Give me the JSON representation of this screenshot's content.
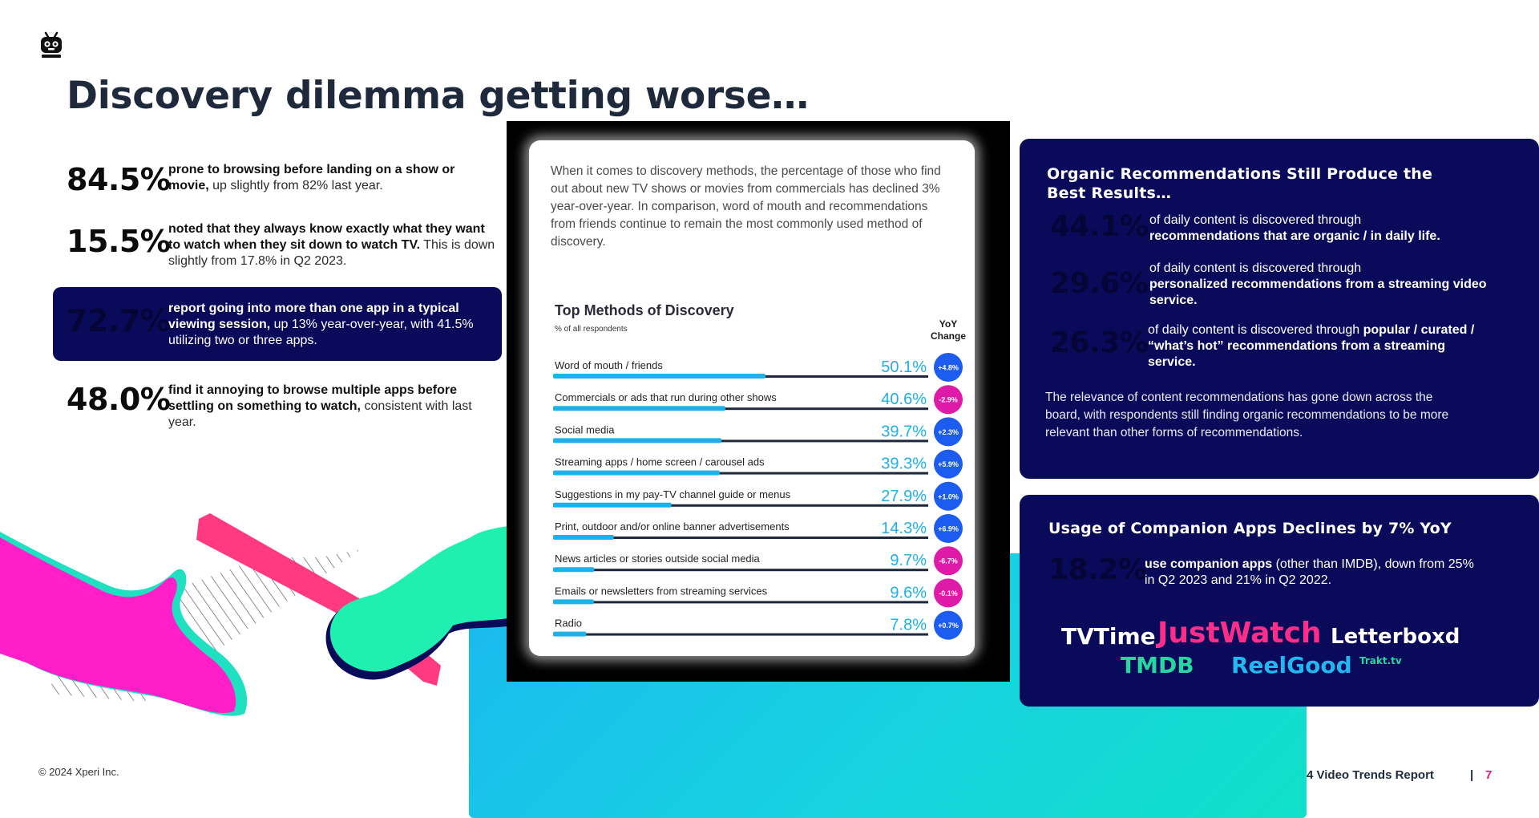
{
  "page": {
    "title": "Discovery dilemma getting worse…",
    "copyright": "© 2024 Xperi Inc.",
    "report_label": "4 Video Trends Report",
    "page_separator": "|",
    "page_number": "7",
    "logo_icon": "tv-character-icon"
  },
  "left_stats": [
    {
      "value": "84.5%",
      "bold": "prone to browsing before landing on a show or movie,",
      "rest": " up slightly from 82% last year."
    },
    {
      "value": "15.5%",
      "bold": "noted that they always know exactly what they want to watch when they sit down to watch TV.",
      "rest": " This is down slightly from 17.8% in Q2 2023."
    },
    {
      "value": "72.7%",
      "bold": "report going into more than one app in a typical viewing session,",
      "rest": " up 13% year-over-year, with 41.5% utilizing two or three apps."
    },
    {
      "value": "48.0%",
      "bold": "find it annoying to browse multiple apps before settling on something to watch,",
      "rest": " consistent with last year."
    }
  ],
  "tv_panel": {
    "intro": "When it comes to discovery methods, the percentage of those who find out about new TV shows or movies from commercials has declined 3% year-over-year. In comparison, word of mouth and recommendations from friends continue to remain the most commonly used method of discovery.",
    "yoy_header_line1": "YoY",
    "yoy_header_line2": "Change"
  },
  "chart_data": {
    "type": "bar",
    "orientation": "horizontal",
    "title": "Top Methods of Discovery",
    "subtitle": "% of all respondents",
    "xlim": [
      0,
      100
    ],
    "categories": [
      "Word of mouth / friends",
      "Commercials or ads that run during other shows",
      "Social media",
      "Streaming apps / home screen / carousel ads",
      "Suggestions in my pay-TV channel guide or menus",
      "Print, outdoor and/or online banner advertisements",
      "News articles or stories outside social media",
      "Emails or newsletters from streaming services",
      "Radio"
    ],
    "values": [
      50.1,
      40.6,
      39.7,
      39.3,
      27.9,
      14.3,
      9.7,
      9.6,
      7.8
    ],
    "value_labels": [
      "50.1%",
      "40.6%",
      "39.7%",
      "39.3%",
      "27.9%",
      "14.3%",
      "9.7%",
      "9.6%",
      "7.8%"
    ],
    "yoy_change": [
      "+4.8%",
      "-2.9%",
      "+2.3%",
      "+5.9%",
      "+1.0%",
      "+6.9%",
      "-6.7%",
      "-0.1%",
      "+0.7%"
    ],
    "colors": {
      "bar": "#1eb0e8",
      "track": "#1f2838",
      "value": "#1eb0e8",
      "positive": "#1c5cf0",
      "negative": "#e01aa8"
    }
  },
  "panel_organic": {
    "title_line1": "Organic Recommendations Still Produce the",
    "title_line2": "Best Results…",
    "stats": [
      {
        "value": "44.1%",
        "pre": "of daily content is discovered through",
        "bold": "recommendations that are organic / in daily life.",
        "post": ""
      },
      {
        "value": "29.6%",
        "pre": "of daily content is discovered through",
        "bold": "personalized recommendations from a streaming video service.",
        "post": ""
      },
      {
        "value": "26.3%",
        "pre": "of daily content is discovered through ",
        "bold": "popular / curated / “what’s hot” recommendations from a streaming service.",
        "post": ""
      }
    ],
    "note": "The relevance of content recommendations has gone down across the board, with respondents still finding organic recommendations to be more relevant than other forms of recommendations."
  },
  "panel_companion": {
    "title": "Usage of Companion Apps Declines by 7% YoY",
    "value": "18.2%",
    "bold": "use companion apps",
    "rest": " (other than IMDB), down from 25% in Q2 2023 and 21% in Q2 2022.",
    "brands": [
      {
        "name": "TVTime",
        "color": "#ffffff"
      },
      {
        "name": "JustWatch",
        "color": "#ff2d8a"
      },
      {
        "name": "Letterboxd",
        "color": "#ffffff"
      },
      {
        "name": "TMDB",
        "color": "#25d8a0"
      },
      {
        "name": "ReelGood",
        "color": "#20b8f0"
      },
      {
        "name": "Trakt.tv",
        "color": "#25d8a0"
      }
    ]
  },
  "colors": {
    "navy": "#0a0a5a",
    "title": "#1e2a3c",
    "accent_pink": "#e0197d",
    "cyan": "#1ab8f0"
  }
}
